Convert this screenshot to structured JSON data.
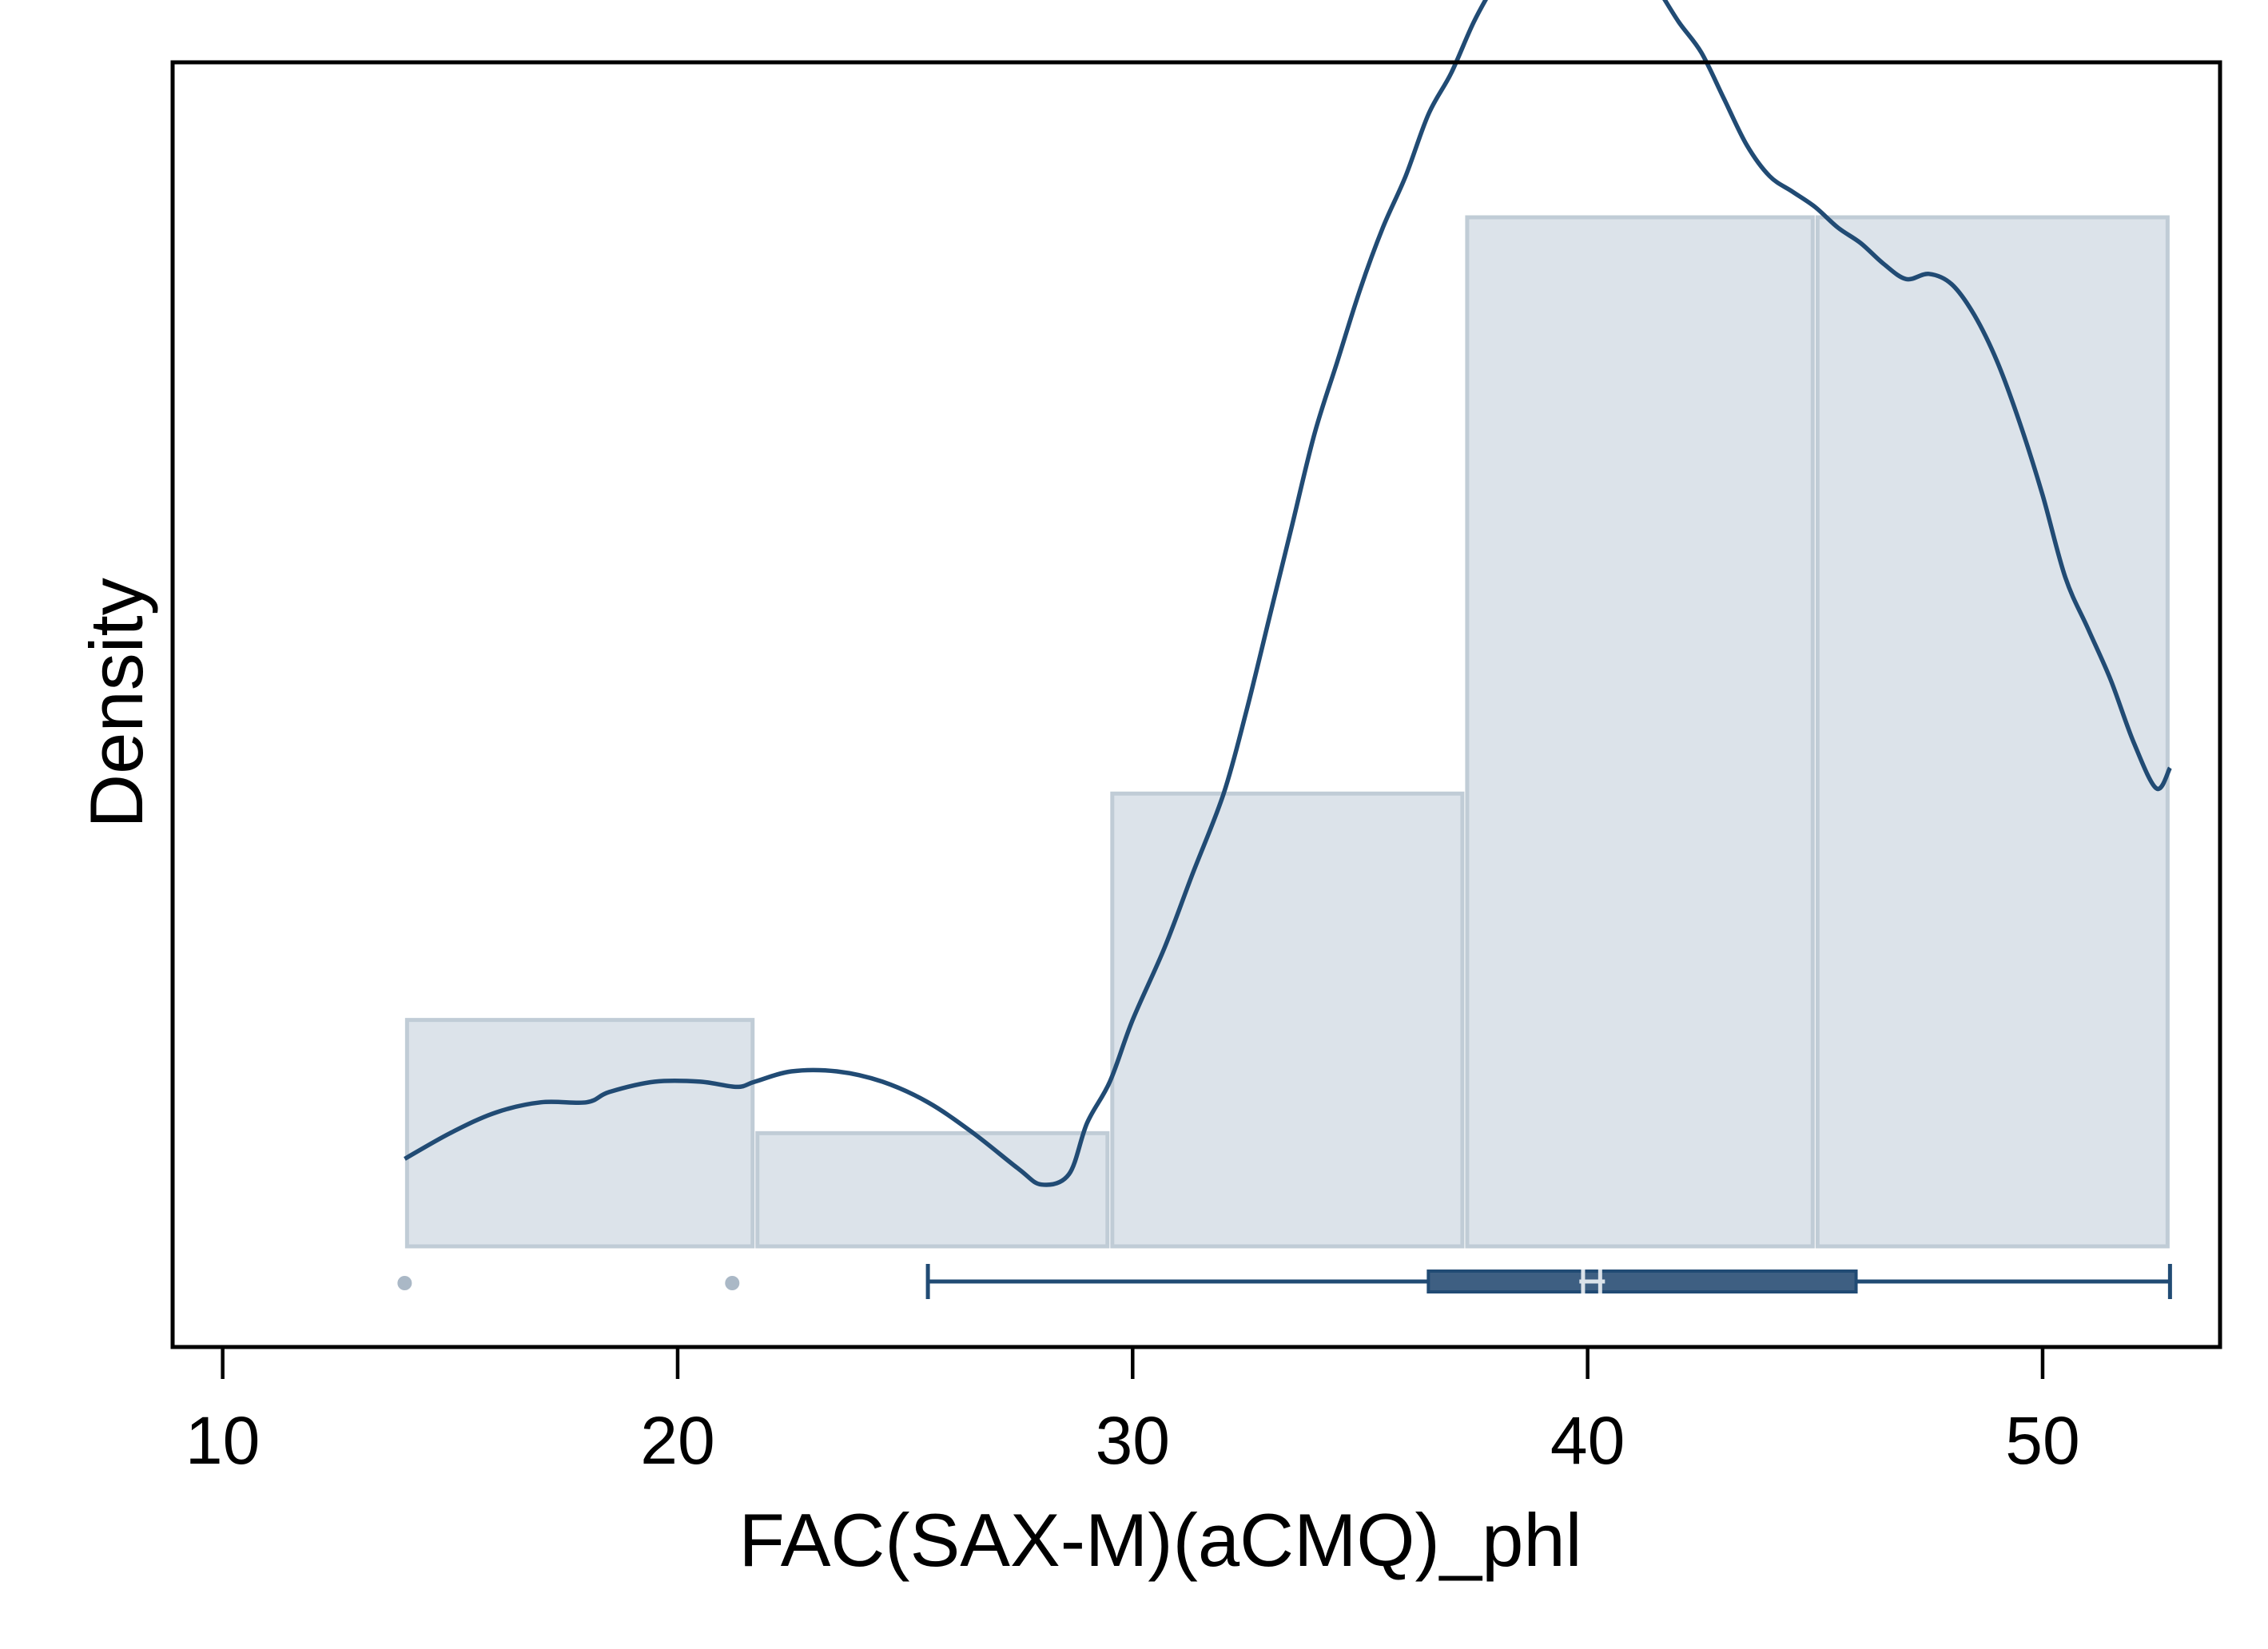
{
  "chart_data": {
    "type": "bar",
    "subtype": "histogram with kernel density and boxplot",
    "title": "",
    "xlabel": "FAC(SAX-M)(aCMQ)_phl",
    "ylabel": "Density",
    "xlim": [
      8.9,
      53.9
    ],
    "ylim": [
      0,
      1.24
    ],
    "xticks": [
      10,
      20,
      30,
      40,
      50
    ],
    "y_ticks_shown": false,
    "grid": false,
    "legend": "none",
    "colors": {
      "bar_fill": "#dce3ea",
      "bar_edge": "#c0ccd6",
      "density_line": "#214b74",
      "box_fill": "#3e5f82",
      "outlier": "#aab8c6"
    },
    "histogram": {
      "bins": [
        {
          "x0": 14.0,
          "x1": 21.7,
          "height": 0.22
        },
        {
          "x0": 21.7,
          "x1": 29.5,
          "height": 0.11
        },
        {
          "x0": 29.5,
          "x1": 37.3,
          "height": 0.44
        },
        {
          "x0": 37.3,
          "x1": 45.0,
          "height": 1.0
        },
        {
          "x0": 45.0,
          "x1": 52.8,
          "height": 1.0
        }
      ]
    },
    "density": {
      "x": [
        14.0,
        15.0,
        16.0,
        17.0,
        18.0,
        18.5,
        19.5,
        20.5,
        21.3,
        21.7,
        22.5,
        23.5,
        24.5,
        25.5,
        26.5,
        27.5,
        28.0,
        28.6,
        29.0,
        29.5,
        30.0,
        30.7,
        31.3,
        32.0,
        32.5,
        33.0,
        33.5,
        34.0,
        34.5,
        35.0,
        35.5,
        36.0,
        36.5,
        37.0,
        37.5,
        38.0,
        38.5,
        39.0,
        39.5,
        40.0,
        40.5,
        41.0,
        41.5,
        42.0,
        42.5,
        43.0,
        43.5,
        44.0,
        44.5,
        45.0,
        45.5,
        46.0,
        46.5,
        47.0,
        47.5,
        48.0,
        48.5,
        49.0,
        49.5,
        50.0,
        50.5,
        51.0,
        51.5,
        52.0,
        52.5,
        52.8
      ],
      "y": [
        0.085,
        0.11,
        0.13,
        0.14,
        0.14,
        0.15,
        0.16,
        0.16,
        0.155,
        0.16,
        0.17,
        0.17,
        0.16,
        0.14,
        0.11,
        0.075,
        0.06,
        0.07,
        0.12,
        0.16,
        0.22,
        0.29,
        0.36,
        0.44,
        0.52,
        0.61,
        0.7,
        0.79,
        0.86,
        0.93,
        0.99,
        1.04,
        1.1,
        1.14,
        1.19,
        1.23,
        1.265,
        1.29,
        1.3,
        1.295,
        1.275,
        1.255,
        1.225,
        1.19,
        1.16,
        1.115,
        1.07,
        1.04,
        1.025,
        1.01,
        0.99,
        0.975,
        0.955,
        0.94,
        0.945,
        0.935,
        0.905,
        0.86,
        0.8,
        0.73,
        0.65,
        0.6,
        0.55,
        0.49,
        0.445,
        0.465
      ]
    },
    "boxplot": {
      "whisker_low": 25.5,
      "q1": 36.5,
      "median": 39.9,
      "mean": 40.1,
      "q3": 45.9,
      "whisker_high": 52.8,
      "outliers": [
        14.0,
        21.2
      ]
    }
  }
}
